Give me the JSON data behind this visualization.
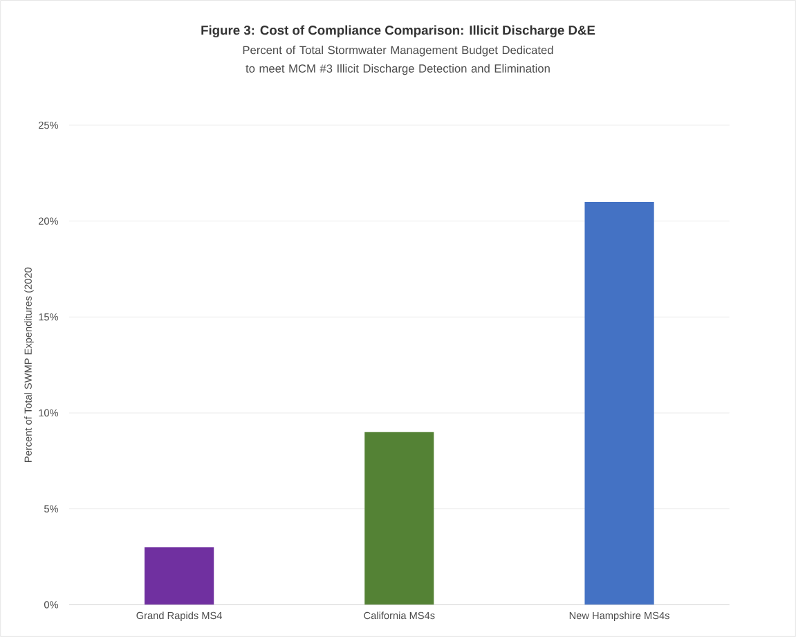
{
  "chart_data": {
    "type": "bar",
    "title": "Figure 3: Cost of Compliance Comparison: Illicit Discharge D&E",
    "subtitle": "Percent of Total Stormwater Management Budget Dedicated to meet MCM #3 Illicit Discharge Detection and Elimination",
    "ylabel": "Percent of Total SWMP Expenditures (2020",
    "categories": [
      "Grand Rapids MS4",
      "California MS4s",
      "New Hampshire MS4s"
    ],
    "values": [
      3,
      9,
      21
    ],
    "colors": [
      "#7030a0",
      "#548235",
      "#4472c4"
    ],
    "ylim": [
      0,
      25
    ],
    "yticks": [
      {
        "value": 0,
        "label": "0%"
      },
      {
        "value": 5,
        "label": "5%"
      },
      {
        "value": 10,
        "label": "10%"
      },
      {
        "value": 15,
        "label": "15%"
      },
      {
        "value": 20,
        "label": "20%"
      },
      {
        "value": 25,
        "label": "25%"
      }
    ],
    "grid": "y"
  }
}
